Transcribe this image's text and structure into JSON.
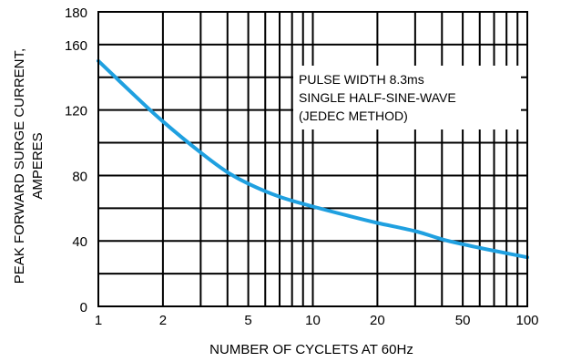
{
  "chart_data": {
    "type": "line",
    "title": "",
    "xlabel": "NUMBER OF CYCLETS AT 60Hz",
    "ylabel_lines": [
      "PEAK FORWARD SURGE CURRENT,",
      "AMPERES"
    ],
    "x_scale": "log",
    "xlim": [
      1,
      100
    ],
    "ylim": [
      0,
      180
    ],
    "x_ticks": [
      1,
      2,
      5,
      10,
      20,
      50,
      100
    ],
    "y_ticks": [
      0,
      40,
      80,
      120,
      160,
      180
    ],
    "grid": true,
    "annotation_lines": [
      "PULSE WIDTH 8.3ms",
      "SINGLE HALF-SINE-WAVE",
      "(JEDEC METHOD)"
    ],
    "series": [
      {
        "color": "#1fa0e0",
        "x": [
          1,
          1.5,
          2,
          3,
          4,
          5,
          7,
          10,
          15,
          20,
          30,
          40,
          50,
          70,
          100
        ],
        "y": [
          150,
          128,
          113,
          94,
          82,
          75,
          67,
          61,
          55,
          51,
          46,
          41,
          38,
          34,
          30
        ]
      }
    ]
  }
}
